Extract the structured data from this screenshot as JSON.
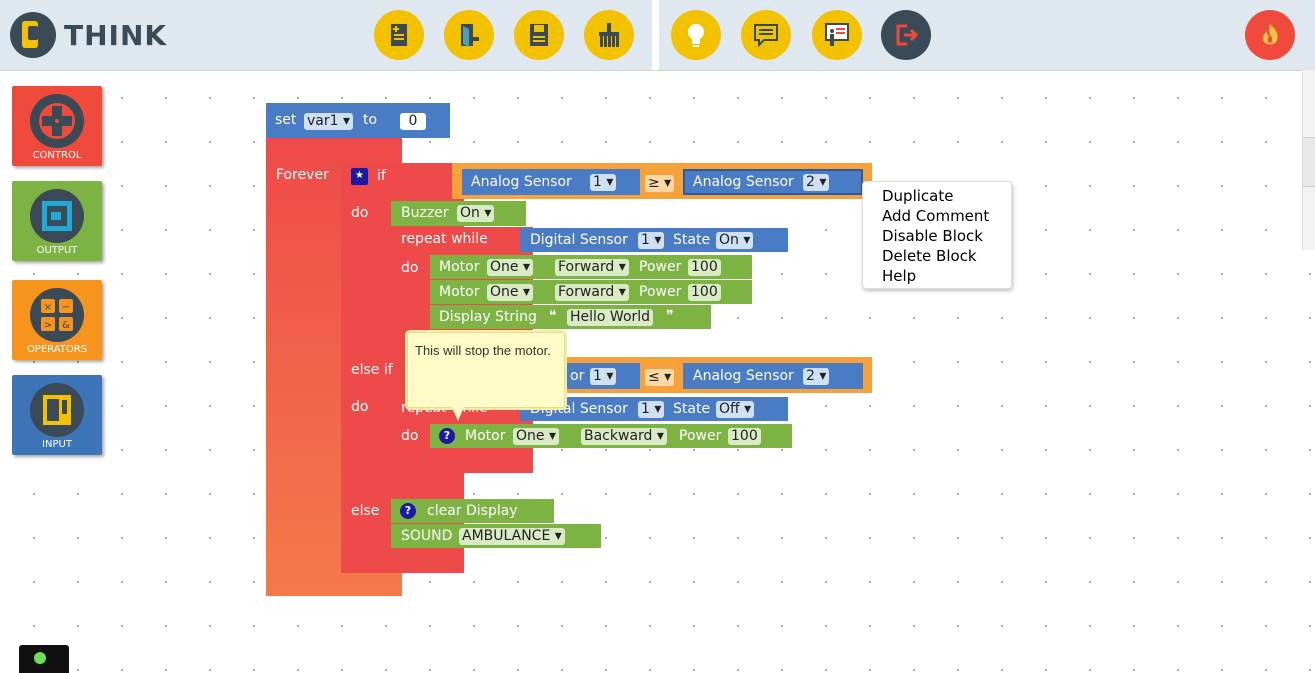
{
  "app": {
    "logo_text": "THINK"
  },
  "toolbar": {
    "left_buttons": [
      "new-file-icon",
      "open-file-icon",
      "save-file-icon",
      "clear-workspace-icon"
    ],
    "right_buttons": [
      "bulb-icon",
      "chat-icon",
      "presentation-icon",
      "logout-icon"
    ],
    "profile_icon": "flame-icon"
  },
  "categories": [
    {
      "label": "CONTROL",
      "color": "#ef4a3c",
      "icon": "dpad-icon"
    },
    {
      "label": "OUTPUT",
      "color": "#7cb342",
      "icon": "output-device-icon"
    },
    {
      "label": "OPERATORS",
      "color": "#f7941d",
      "icon": "operators-icon"
    },
    {
      "label": "INPUT",
      "color": "#3e74b8",
      "icon": "input-device-icon"
    }
  ],
  "blocks": {
    "set_var": {
      "set": "set",
      "var": "var1 ▾",
      "to": "to",
      "value": "0"
    },
    "forever": "Forever",
    "if": "if",
    "do1": "do",
    "cond1": {
      "left": "Analog Sensor",
      "left_n": "1 ▾",
      "op": "≥ ▾",
      "right": "Analog Sensor",
      "right_n": "2 ▾"
    },
    "buzzer": {
      "label": "Buzzer",
      "state": "On ▾"
    },
    "repeat1": {
      "label": "repeat while",
      "sensor": "Digital Sensor",
      "n": "1 ▾",
      "state_label": "State",
      "state": "On ▾",
      "do": "do"
    },
    "motor1": {
      "label": "Motor",
      "which": "One ▾",
      "dir": "Forward ▾",
      "power_label": "Power",
      "power": "100"
    },
    "motor2": {
      "label": "Motor",
      "which": "One ▾",
      "dir": "Forward ▾",
      "power_label": "Power",
      "power": "100"
    },
    "display": {
      "label": "Display String",
      "open_q": "❝",
      "value": "Hello World",
      "close_q": "❞"
    },
    "elseif": "else if",
    "cond2": {
      "left_partial": "or",
      "left_n": "1 ▾",
      "op": "≤ ▾",
      "right": "Analog Sensor",
      "right_n": "2 ▾"
    },
    "do2": "do",
    "repeat2": {
      "label_partial": "repeat while",
      "sensor": "Digital Sensor",
      "n": "1 ▾",
      "state_label": "State",
      "state": "Off ▾",
      "do": "do"
    },
    "motor3": {
      "label": "Motor",
      "which": "One ▾",
      "dir": "Backward ▾",
      "power_label": "Power",
      "power": "100"
    },
    "else": "else",
    "clear": "clear Display",
    "sound": {
      "label": "SOUND",
      "value": "AMBULANCE ▾"
    },
    "help_mark": "?",
    "star_mark": "★"
  },
  "context_menu": [
    "Duplicate",
    "Add Comment",
    "Disable Block",
    "Delete Block",
    "Help"
  ],
  "tooltip": "This will stop the motor."
}
